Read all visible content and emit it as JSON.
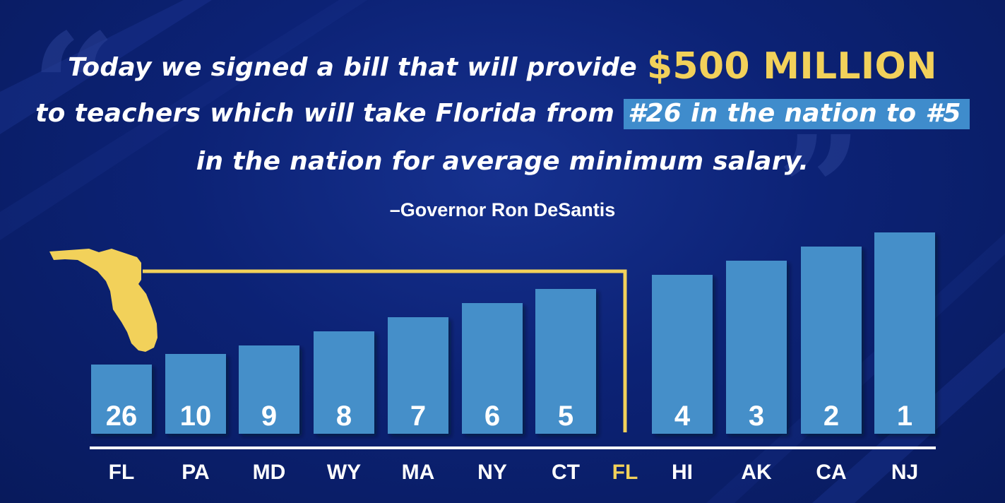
{
  "quote": {
    "line1_text": "Today we signed a bill that will provide",
    "amount": "$500 MILLION",
    "line2_text": "to teachers which will take Florida from",
    "line2_highlight": "#26 in the nation to #5",
    "line3_text": "in the nation for average minimum salary."
  },
  "attribution": "–Governor Ron DeSantis",
  "colors": {
    "background": "#0c2275",
    "bar": "#448fc9",
    "highlight": "#f2d15a",
    "text": "#ffffff"
  },
  "chart_data": {
    "type": "bar",
    "title": "",
    "xlabel": "",
    "ylabel": "",
    "categories": [
      "FL",
      "PA",
      "MD",
      "WY",
      "MA",
      "NY",
      "CT",
      "FL",
      "HI",
      "AK",
      "CA",
      "NJ"
    ],
    "values": [
      26,
      10,
      9,
      8,
      7,
      6,
      5,
      null,
      4,
      3,
      2,
      1
    ],
    "data_labels": [
      "26",
      "10",
      "9",
      "8",
      "7",
      "6",
      "5",
      "",
      "4",
      "3",
      "2",
      "1"
    ],
    "highlighted_category_index": 7,
    "annotation": "Florida outline with connector line to the FL position between CT and HI"
  }
}
